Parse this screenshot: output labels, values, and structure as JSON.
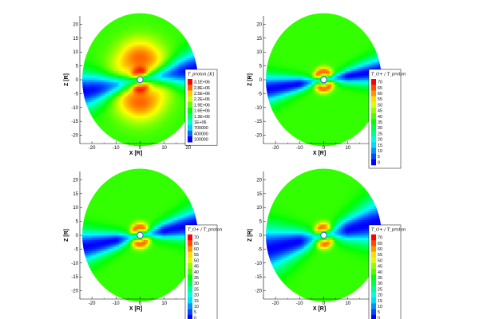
{
  "chart_data": [
    {
      "type": "heatmap",
      "title": "",
      "xlabel": "X [R]",
      "ylabel": "Z [R]",
      "xlim": [
        -25,
        28
      ],
      "ylim": [
        -23,
        23
      ],
      "x_ticks": [
        -20,
        -10,
        0,
        10,
        20
      ],
      "y_ticks": [
        -20,
        -15,
        -10,
        -5,
        0,
        5,
        10,
        15,
        20
      ],
      "x_tick_labels": [
        "-20",
        "-10",
        "0",
        "10",
        "20"
      ],
      "y_tick_labels": [
        "-20",
        "-15",
        "-10",
        "-5",
        "0",
        "5",
        "10",
        "15",
        "20"
      ],
      "domain_radius": 24,
      "legend_title": "T_proton [K]",
      "legend_levels": [
        "3.1E+06",
        "2.8E+06",
        "2.5E+06",
        "2.2E+06",
        "1.9E+06",
        "1.6E+06",
        "1.3E+06",
        "1E+06",
        "700000",
        "400000",
        "100000"
      ],
      "field": {
        "lobe_angle_deg": 90,
        "lobe_radius": 8,
        "lobe_width_deg": 55,
        "lobe_peak": 0.9,
        "sheet_angle_deg": 10,
        "sheet_width_deg": 9,
        "background": 0.55,
        "inner_boost": 0.2
      }
    },
    {
      "type": "heatmap",
      "title": "",
      "xlabel": "X [R]",
      "ylabel": "Z [R]",
      "xlim": [
        -25,
        28
      ],
      "ylim": [
        -23,
        23
      ],
      "x_ticks": [
        -20,
        -10,
        0,
        10,
        20
      ],
      "y_ticks": [
        -20,
        -15,
        -10,
        -5,
        0,
        5,
        10,
        15,
        20
      ],
      "x_tick_labels": [
        "-20",
        "-10",
        "0",
        "10",
        "20"
      ],
      "y_tick_labels": [
        "-20",
        "-15",
        "-10",
        "-5",
        "0",
        "5",
        "10",
        "15",
        "20"
      ],
      "domain_radius": 24,
      "legend_title": "T_O+ / T_proton",
      "legend_levels": [
        "70",
        "65",
        "60",
        "55",
        "50",
        "45",
        "40",
        "35",
        "30",
        "25",
        "20",
        "15",
        "10",
        "5",
        "0"
      ],
      "field": {
        "lobe_angle_deg": 90,
        "lobe_radius": 0,
        "lobe_width_deg": 0,
        "lobe_peak": 0.0,
        "sheet_angle_deg": 8,
        "sheet_width_deg": 7,
        "background": 0.55,
        "inner_boost": 0.35
      }
    },
    {
      "type": "heatmap",
      "title": "",
      "xlabel": "X [R]",
      "ylabel": "Z [R]",
      "xlim": [
        -25,
        28
      ],
      "ylim": [
        -23,
        23
      ],
      "x_ticks": [
        -20,
        -10,
        0,
        10,
        20
      ],
      "y_ticks": [
        -20,
        -15,
        -10,
        -5,
        0,
        5,
        10,
        15,
        20
      ],
      "x_tick_labels": [
        "-20",
        "-10",
        "0",
        "10",
        "20"
      ],
      "y_tick_labels": [
        "-20",
        "-15",
        "-10",
        "-5",
        "0",
        "5",
        "10",
        "15",
        "20"
      ],
      "domain_radius": 24,
      "legend_title": "T_O+ / T_proton",
      "legend_levels": [
        "70",
        "65",
        "60",
        "55",
        "50",
        "45",
        "40",
        "35",
        "30",
        "25",
        "20",
        "15",
        "10",
        "5",
        "0"
      ],
      "field": {
        "lobe_angle_deg": 90,
        "lobe_radius": 0,
        "lobe_width_deg": 0,
        "lobe_peak": 0.0,
        "sheet_angle_deg": 10,
        "sheet_width_deg": 8,
        "background": 0.55,
        "inner_boost": 0.35
      }
    },
    {
      "type": "heatmap",
      "title": "",
      "xlabel": "X [R]",
      "ylabel": "Z [R]",
      "xlim": [
        -25,
        28
      ],
      "ylim": [
        -23,
        23
      ],
      "x_ticks": [
        -20,
        -10,
        0,
        10,
        20
      ],
      "y_ticks": [
        -20,
        -15,
        -10,
        -5,
        0,
        5,
        10,
        15,
        20
      ],
      "x_tick_labels": [
        "-20",
        "-10",
        "0",
        "10",
        "20"
      ],
      "y_tick_labels": [
        "-20",
        "-15",
        "-10",
        "-5",
        "0",
        "5",
        "10",
        "15",
        "20"
      ],
      "domain_radius": 24,
      "legend_title": "T_O+ / T_proton",
      "legend_levels": [
        "70",
        "65",
        "60",
        "55",
        "50",
        "45",
        "40",
        "35",
        "30",
        "25",
        "20",
        "15",
        "10",
        "5",
        "0"
      ],
      "field": {
        "lobe_angle_deg": 90,
        "lobe_radius": 0,
        "lobe_width_deg": 0,
        "lobe_peak": 0.0,
        "sheet_angle_deg": 12,
        "sheet_width_deg": 11,
        "background": 0.55,
        "inner_boost": 0.35
      }
    }
  ],
  "colors": {
    "colormap": [
      "#0000ff",
      "#0080ff",
      "#00ffff",
      "#00ff80",
      "#00ff00",
      "#80ff00",
      "#ffff00",
      "#ff8000",
      "#ff0000"
    ],
    "body": "#ffffff",
    "axis": "#000000"
  }
}
